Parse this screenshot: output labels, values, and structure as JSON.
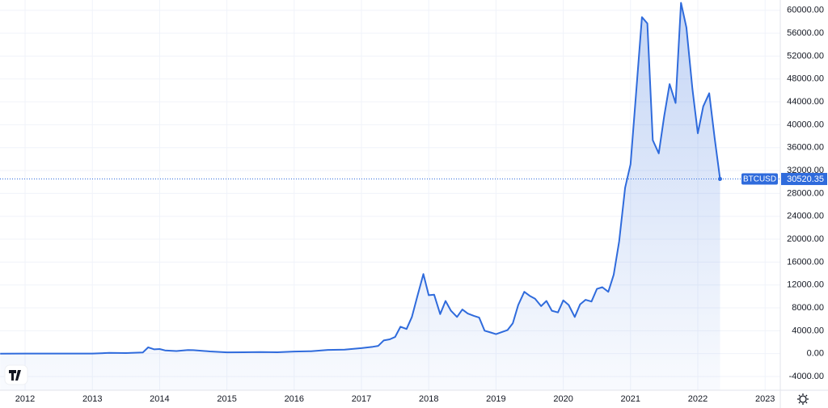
{
  "chart_data": {
    "type": "line",
    "x": [
      2011.63,
      2012.0,
      2012.5,
      2013.0,
      2013.25,
      2013.5,
      2013.75,
      2013.83,
      2013.92,
      2014.0,
      2014.08,
      2014.25,
      2014.42,
      2014.5,
      2014.75,
      2015.0,
      2015.25,
      2015.5,
      2015.75,
      2016.0,
      2016.25,
      2016.5,
      2016.75,
      2017.0,
      2017.17,
      2017.25,
      2017.33,
      2017.42,
      2017.5,
      2017.58,
      2017.67,
      2017.75,
      2017.83,
      2017.92,
      2018.0,
      2018.08,
      2018.17,
      2018.25,
      2018.33,
      2018.42,
      2018.5,
      2018.58,
      2018.67,
      2018.75,
      2018.83,
      2018.92,
      2019.0,
      2019.17,
      2019.25,
      2019.33,
      2019.42,
      2019.5,
      2019.58,
      2019.67,
      2019.75,
      2019.83,
      2019.92,
      2020.0,
      2020.08,
      2020.17,
      2020.25,
      2020.33,
      2020.42,
      2020.5,
      2020.58,
      2020.67,
      2020.75,
      2020.83,
      2020.92,
      2021.0,
      2021.08,
      2021.17,
      2021.25,
      2021.33,
      2021.42,
      2021.5,
      2021.58,
      2021.67,
      2021.75,
      2021.83,
      2021.92,
      2022.0,
      2022.08,
      2022.17,
      2022.25,
      2022.33
    ],
    "series": [
      {
        "name": "BTCUSD",
        "color": "#2f6bdc",
        "values": [
          3,
          5,
          7,
          14,
          130,
          95,
          200,
          1100,
          750,
          800,
          560,
          450,
          630,
          600,
          380,
          220,
          240,
          280,
          240,
          370,
          420,
          650,
          700,
          960,
          1200,
          1350,
          2300,
          2500,
          2900,
          4700,
          4300,
          6400,
          10000,
          13900,
          10200,
          10300,
          6900,
          9200,
          7500,
          6400,
          7700,
          7000,
          6600,
          6300,
          4000,
          3700,
          3400,
          4100,
          5300,
          8500,
          10800,
          10100,
          9600,
          8300,
          9200,
          7500,
          7200,
          9300,
          8500,
          6400,
          8600,
          9400,
          9100,
          11300,
          11600,
          10800,
          13800,
          19600,
          29000,
          33100,
          45200,
          58800,
          57700,
          37300,
          35000,
          41500,
          47100,
          43800,
          61300,
          57000,
          46300,
          38500,
          43200,
          45500,
          37700,
          30520.35
        ]
      }
    ],
    "price_line": {
      "value": 30520.35,
      "label": "30520.35"
    },
    "xlim": [
      2011.627,
      2023.226
    ],
    "xticks": [
      2012,
      2013,
      2014,
      2015,
      2016,
      2017,
      2018,
      2019,
      2020,
      2021,
      2022,
      2023
    ],
    "ylim": [
      -6400,
      61800
    ],
    "yticks": [
      {
        "value": -4000,
        "label": "-4000.00"
      },
      {
        "value": 0,
        "label": "0.00"
      },
      {
        "value": 4000,
        "label": "4000.00"
      },
      {
        "value": 8000,
        "label": "8000.00"
      },
      {
        "value": 12000,
        "label": "12000.00"
      },
      {
        "value": 16000,
        "label": "16000.00"
      },
      {
        "value": 20000,
        "label": "20000.00"
      },
      {
        "value": 24000,
        "label": "24000.00"
      },
      {
        "value": 28000,
        "label": "28000.00"
      },
      {
        "value": 32000,
        "label": "32000.00"
      },
      {
        "value": 36000,
        "label": "36000.00"
      },
      {
        "value": 40000,
        "label": "40000.00"
      },
      {
        "value": 44000,
        "label": "44000.00"
      },
      {
        "value": 48000,
        "label": "48000.00"
      },
      {
        "value": 52000,
        "label": "52000.00"
      },
      {
        "value": 56000,
        "label": "56000.00"
      },
      {
        "value": 60000,
        "label": "60000.00"
      }
    ],
    "grid": true
  }
}
